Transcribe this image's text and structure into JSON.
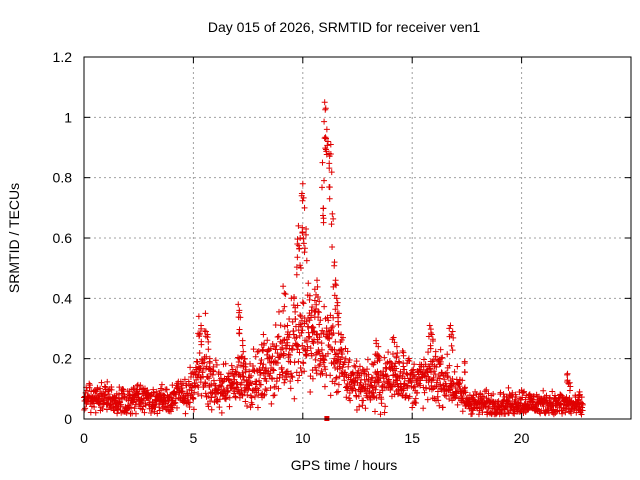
{
  "chart_data": {
    "type": "scatter",
    "title": "Day 015 of 2026, SRMTID for receiver ven1",
    "xlabel": "GPS time / hours",
    "ylabel": "SRMTID / TECUs",
    "xlim": [
      0,
      25
    ],
    "ylim": [
      0,
      1.2
    ],
    "xticks": [
      0,
      5,
      10,
      15,
      20
    ],
    "xtick_labels": [
      "0",
      "5",
      "10",
      "15",
      "20"
    ],
    "yticks": [
      0,
      0.2,
      0.4,
      0.6,
      0.8,
      1.0,
      1.2
    ],
    "ytick_labels": [
      "0",
      "0.2",
      "0.4",
      "0.6",
      "0.8",
      "1",
      "1.2"
    ],
    "grid": true,
    "marker": "plus",
    "color": "#e00000",
    "profile": [
      [
        0.0,
        0.06
      ],
      [
        0.5,
        0.08
      ],
      [
        1.0,
        0.07
      ],
      [
        1.5,
        0.06
      ],
      [
        2.0,
        0.06
      ],
      [
        2.5,
        0.07
      ],
      [
        3.0,
        0.06
      ],
      [
        3.5,
        0.07
      ],
      [
        4.0,
        0.07
      ],
      [
        4.5,
        0.08
      ],
      [
        5.0,
        0.1
      ],
      [
        5.4,
        0.16
      ],
      [
        5.8,
        0.11
      ],
      [
        6.2,
        0.1
      ],
      [
        6.6,
        0.1
      ],
      [
        7.0,
        0.14
      ],
      [
        7.5,
        0.13
      ],
      [
        8.0,
        0.13
      ],
      [
        8.5,
        0.18
      ],
      [
        9.0,
        0.2
      ],
      [
        9.3,
        0.24
      ],
      [
        9.7,
        0.27
      ],
      [
        10.0,
        0.28
      ],
      [
        10.3,
        0.25
      ],
      [
        10.6,
        0.24
      ],
      [
        10.9,
        0.22
      ],
      [
        11.2,
        0.26
      ],
      [
        11.5,
        0.2
      ],
      [
        12.0,
        0.14
      ],
      [
        12.5,
        0.12
      ],
      [
        13.0,
        0.11
      ],
      [
        13.5,
        0.12
      ],
      [
        14.0,
        0.14
      ],
      [
        14.5,
        0.14
      ],
      [
        15.0,
        0.12
      ],
      [
        15.5,
        0.13
      ],
      [
        16.0,
        0.14
      ],
      [
        16.5,
        0.13
      ],
      [
        17.0,
        0.1
      ],
      [
        17.5,
        0.06
      ],
      [
        18.0,
        0.05
      ],
      [
        18.5,
        0.05
      ],
      [
        19.0,
        0.05
      ],
      [
        19.5,
        0.05
      ],
      [
        20.0,
        0.06
      ],
      [
        20.5,
        0.05
      ],
      [
        21.0,
        0.05
      ],
      [
        21.5,
        0.05
      ],
      [
        22.0,
        0.05
      ],
      [
        22.5,
        0.04
      ],
      [
        22.8,
        0.04
      ]
    ],
    "spikes": [
      [
        5.25,
        0.34
      ],
      [
        5.35,
        0.31
      ],
      [
        5.55,
        0.35
      ],
      [
        5.65,
        0.28
      ],
      [
        5.75,
        0.2
      ],
      [
        7.05,
        0.38
      ],
      [
        7.1,
        0.36
      ],
      [
        7.25,
        0.26
      ],
      [
        7.35,
        0.2
      ],
      [
        8.2,
        0.28
      ],
      [
        9.1,
        0.44
      ],
      [
        9.3,
        0.31
      ],
      [
        9.6,
        0.4
      ],
      [
        9.75,
        0.58
      ],
      [
        9.8,
        0.64
      ],
      [
        9.88,
        0.6
      ],
      [
        9.95,
        0.74
      ],
      [
        10.0,
        0.78
      ],
      [
        10.08,
        0.7
      ],
      [
        10.15,
        0.63
      ],
      [
        10.25,
        0.45
      ],
      [
        10.4,
        0.36
      ],
      [
        10.55,
        0.43
      ],
      [
        10.65,
        0.46
      ],
      [
        10.75,
        0.39
      ],
      [
        10.9,
        0.85
      ],
      [
        10.97,
        0.79
      ],
      [
        11.0,
        1.05
      ],
      [
        11.05,
        1.03
      ],
      [
        11.1,
        0.96
      ],
      [
        11.15,
        0.92
      ],
      [
        11.2,
        0.88
      ],
      [
        11.28,
        0.91
      ],
      [
        11.35,
        0.68
      ],
      [
        11.45,
        0.52
      ],
      [
        11.5,
        0.46
      ],
      [
        11.55,
        0.4
      ],
      [
        11.65,
        0.35
      ],
      [
        11.75,
        0.28
      ],
      [
        13.35,
        0.26
      ],
      [
        13.45,
        0.24
      ],
      [
        14.15,
        0.27
      ],
      [
        14.3,
        0.24
      ],
      [
        14.6,
        0.22
      ],
      [
        15.8,
        0.31
      ],
      [
        15.9,
        0.28
      ],
      [
        16.3,
        0.23
      ],
      [
        16.75,
        0.31
      ],
      [
        16.85,
        0.29
      ],
      [
        17.4,
        0.19
      ],
      [
        22.1,
        0.15
      ],
      [
        22.2,
        0.12
      ],
      [
        22.65,
        0.09
      ]
    ],
    "special_point": [
      11.1,
      0.0
    ]
  }
}
